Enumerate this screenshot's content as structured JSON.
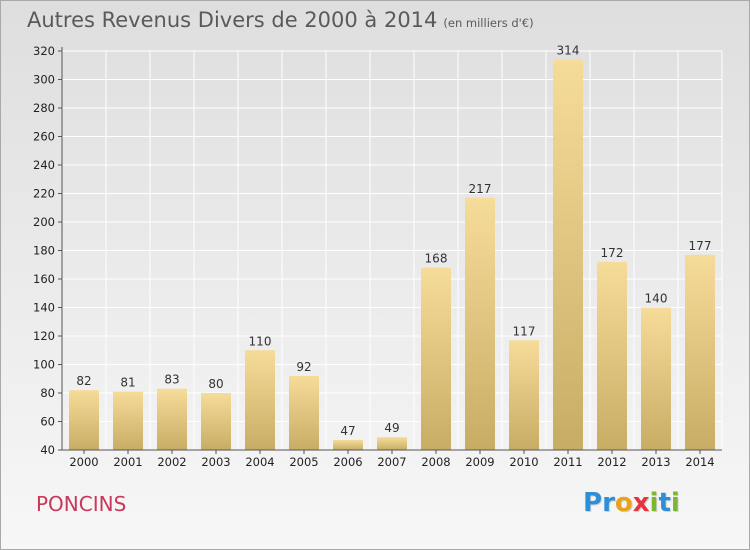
{
  "header": {
    "title": "Autres Revenus Divers de 2000 à 2014",
    "unit": "(en milliers d'€)"
  },
  "footer": {
    "commune": "PONCINS",
    "logo_letters": [
      {
        "ch": "P",
        "color": "#2f8ed8"
      },
      {
        "ch": "r",
        "color": "#2f8ed8"
      },
      {
        "ch": "o",
        "color": "#e8a318"
      },
      {
        "ch": "x",
        "color": "#e4353f"
      },
      {
        "ch": "i",
        "color": "#7cb82f"
      },
      {
        "ch": "t",
        "color": "#2f8ed8"
      },
      {
        "ch": "i",
        "color": "#7cb82f"
      }
    ]
  },
  "colors": {
    "bar_light": "#f6dc99",
    "bar_dark": "#c7ad64",
    "grid": "#ffffff",
    "axis": "#555555"
  },
  "chart_data": {
    "type": "bar",
    "categories": [
      "2000",
      "2001",
      "2002",
      "2003",
      "2004",
      "2005",
      "2006",
      "2007",
      "2008",
      "2009",
      "2010",
      "2011",
      "2012",
      "2013",
      "2014"
    ],
    "values": [
      82,
      81,
      83,
      80,
      110,
      92,
      47,
      49,
      168,
      217,
      117,
      314,
      172,
      140,
      177
    ],
    "ylim": [
      40,
      320
    ],
    "yticks": [
      40,
      60,
      80,
      100,
      120,
      140,
      160,
      180,
      200,
      220,
      240,
      260,
      280,
      300,
      320
    ],
    "grid": true,
    "show_value_labels": true
  }
}
